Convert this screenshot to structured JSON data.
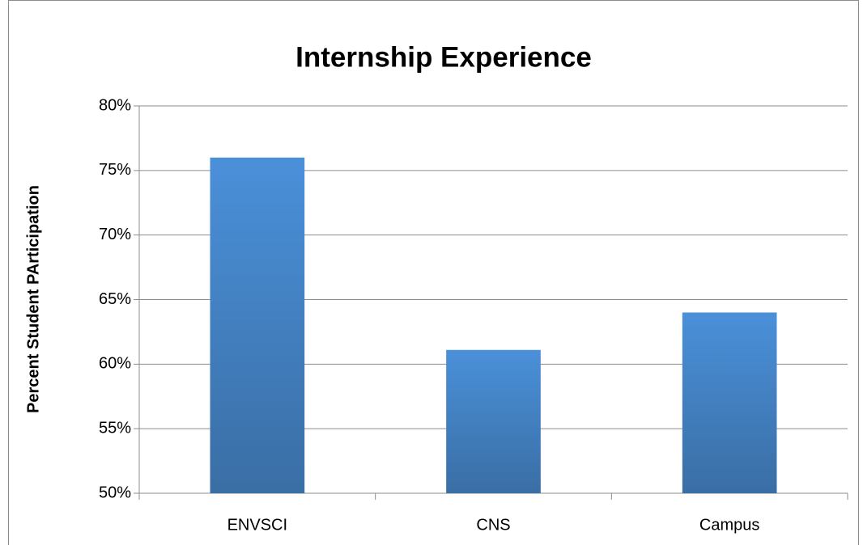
{
  "chart_data": {
    "type": "bar",
    "title": "Internship Experience",
    "y_label": "Percent Student PArticipation",
    "categories": [
      "ENVSCI",
      "CNS",
      "Campus"
    ],
    "values": [
      76,
      61.1,
      64
    ],
    "color": "#4a90d9",
    "ylim": [
      50,
      80
    ],
    "yticks": [
      {
        "value": 50,
        "label": "50%"
      },
      {
        "value": 55,
        "label": "55%"
      },
      {
        "value": 60,
        "label": "60%"
      },
      {
        "value": 65,
        "label": "65%"
      },
      {
        "value": 70,
        "label": "70%"
      },
      {
        "value": 75,
        "label": "75%"
      },
      {
        "value": 80,
        "label": "80%"
      }
    ],
    "grid": true
  }
}
